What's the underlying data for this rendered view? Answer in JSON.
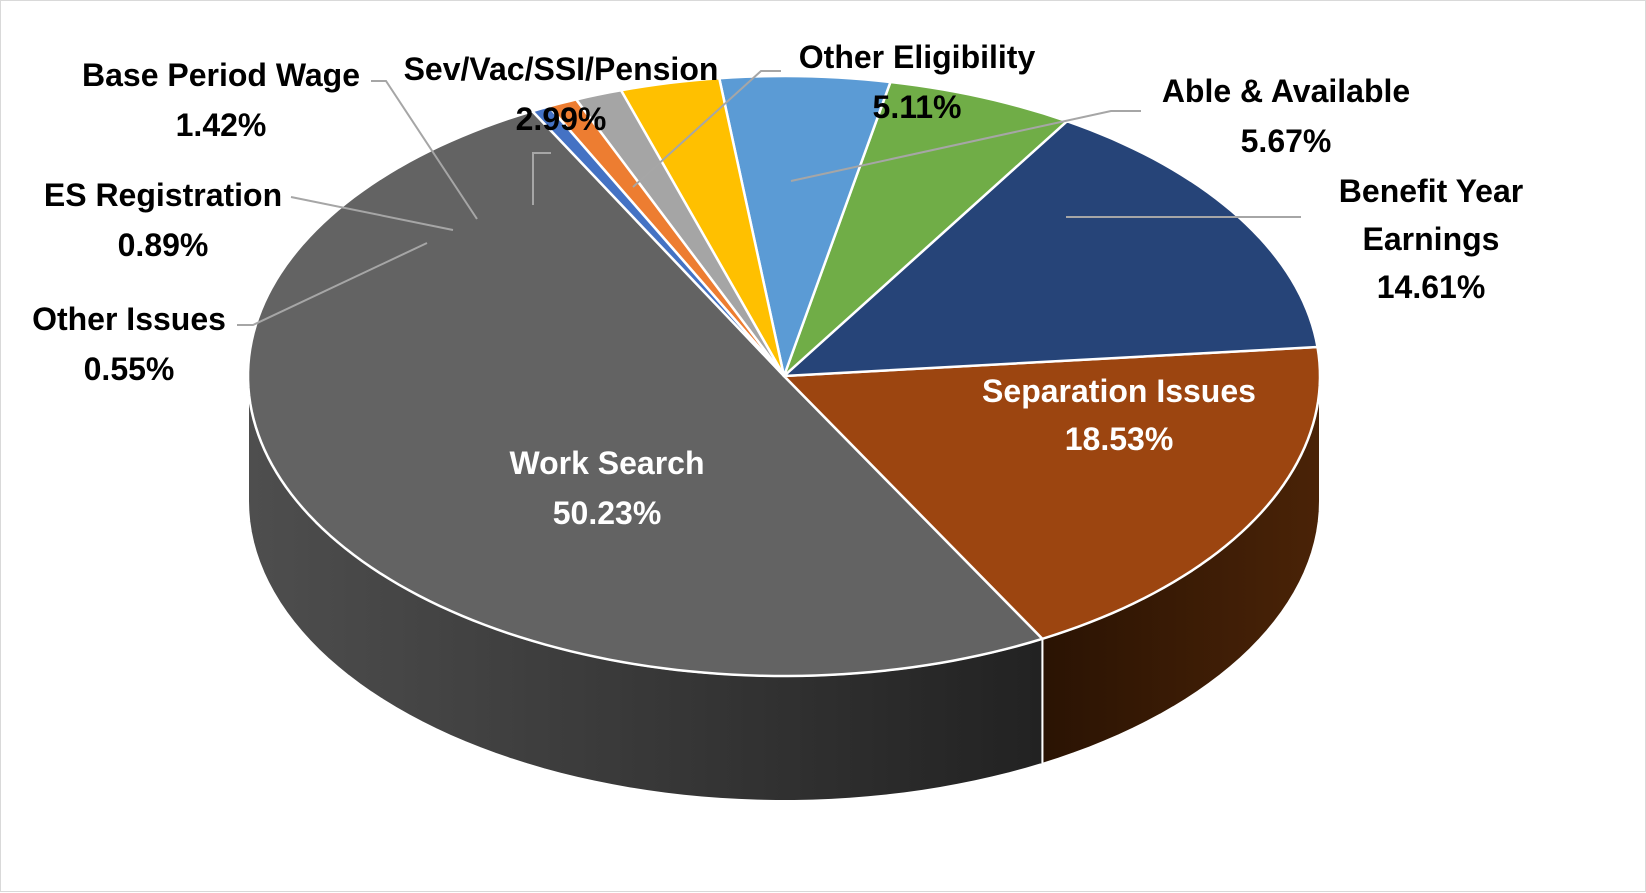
{
  "chart_data": {
    "type": "pie",
    "style": "3d",
    "legend": "none",
    "slices": [
      {
        "name": "Work Search",
        "value": 50.23,
        "value_label": "50.23%",
        "color": "#636363",
        "side_color": "#4a4a4a"
      },
      {
        "name": "Separation Issues",
        "value": 18.53,
        "value_label": "18.53%",
        "color": "#9c4510",
        "side_color": "#3e1c04"
      },
      {
        "name": "Benefit Year Earnings",
        "value": 14.61,
        "value_label": "14.61%",
        "color": "#264478",
        "side_color": "#172a4a"
      },
      {
        "name": "Able & Available",
        "value": 5.67,
        "value_label": "5.67%",
        "color": "#70ad47",
        "side_color": "#46702b"
      },
      {
        "name": "Other Eligibility",
        "value": 5.11,
        "value_label": "5.11%",
        "color": "#5b9bd5",
        "side_color": "#3a6b99"
      },
      {
        "name": "Sev/Vac/SSI/Pension",
        "value": 2.99,
        "value_label": "2.99%",
        "color": "#ffc000",
        "side_color": "#b38600"
      },
      {
        "name": "Base Period Wage",
        "value": 1.42,
        "value_label": "1.42%",
        "color": "#a5a5a5",
        "side_color": "#737373"
      },
      {
        "name": "ES Registration",
        "value": 0.89,
        "value_label": "0.89%",
        "color": "#ed7d31",
        "side_color": "#a6561f"
      },
      {
        "name": "Other Issues",
        "value": 0.55,
        "value_label": "0.55%",
        "color": "#4472c4",
        "side_color": "#2e4f88"
      }
    ]
  }
}
